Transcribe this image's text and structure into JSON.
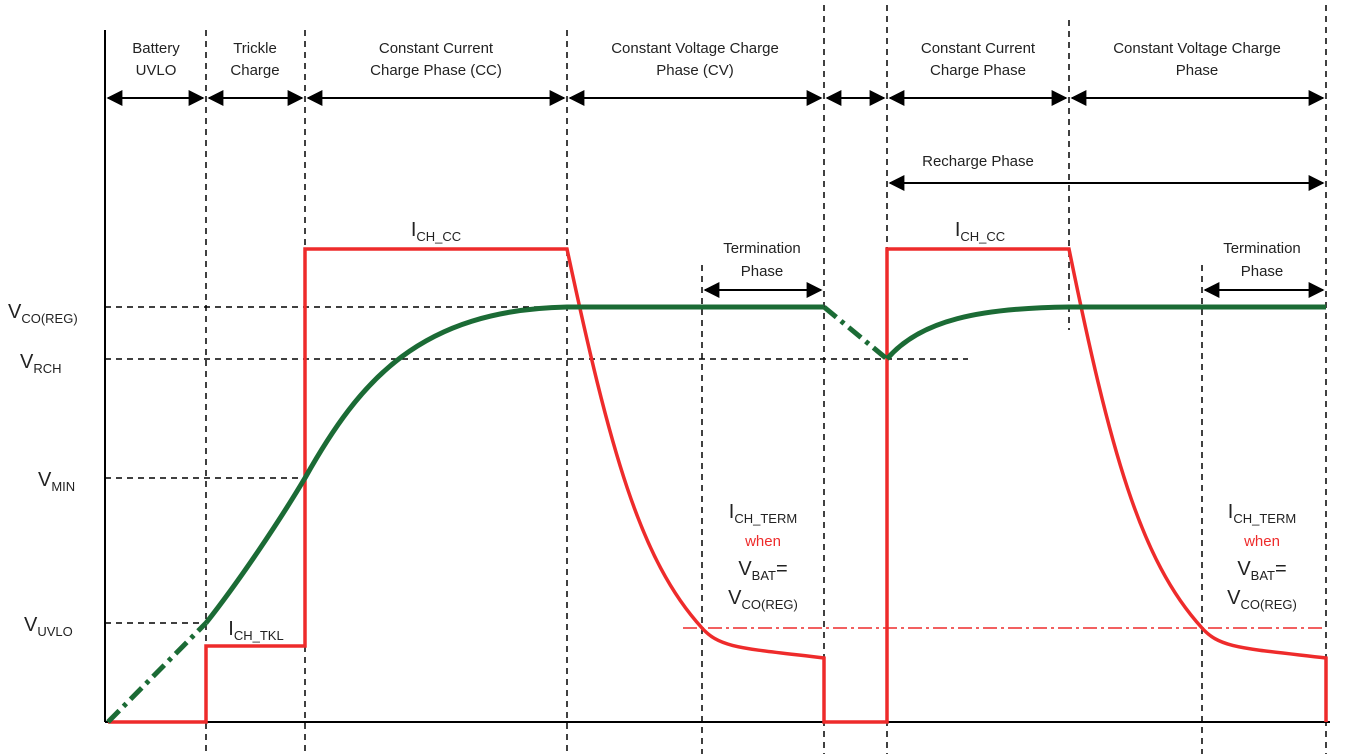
{
  "phases": {
    "uvlo": [
      "Battery",
      "UVLO"
    ],
    "trickle": [
      "Trickle",
      "Charge"
    ],
    "cc": [
      "Constant Current",
      "Charge Phase (CC)"
    ],
    "cv": [
      "Constant Voltage Charge",
      "Phase (CV)"
    ],
    "cc2": [
      "Constant Current",
      "Charge Phase"
    ],
    "cv2": [
      "Constant Voltage Charge",
      "Phase"
    ],
    "recharge": "Recharge Phase",
    "termination": [
      "Termination",
      "Phase"
    ]
  },
  "levels": {
    "vco_reg": {
      "main": "V",
      "sub": "CO(REG)"
    },
    "vrch": {
      "main": "V",
      "sub": "RCH"
    },
    "vmin": {
      "main": "V",
      "sub": "MIN"
    },
    "vuvlo": {
      "main": "V",
      "sub": "UVLO"
    }
  },
  "currents": {
    "ich_cc": {
      "main": "I",
      "sub": "CH_CC"
    },
    "ich_tkl": {
      "main": "I",
      "sub": "CH_TKL"
    },
    "ich_term": {
      "main": "I",
      "sub": "CH_TERM"
    },
    "when": "when",
    "vbat": {
      "main": "V",
      "sub": "BAT",
      "suffix": "="
    },
    "vco": {
      "main": "V",
      "sub": "CO(REG)"
    }
  },
  "colors": {
    "voltage_curve": "#1b6b35",
    "current_curve": "#ee2b2b",
    "axes": "#000000"
  }
}
